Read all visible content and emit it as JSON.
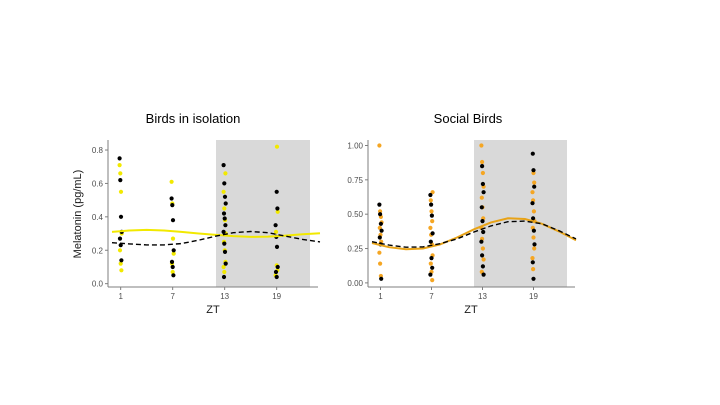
{
  "figure": {
    "ylabel": "Melatonin (pg/mL)"
  },
  "chart_data": [
    {
      "type": "scatter",
      "title": "Birds in isolation",
      "xlabel": "ZT",
      "ylabel": "Melatonin (pg/mL)",
      "x_ticks": [
        1,
        7,
        13,
        19
      ],
      "y_ticks": [
        "0.0",
        "0.2",
        "0.4",
        "0.6",
        "0.8"
      ],
      "xlim": [
        0,
        24
      ],
      "ylim": [
        -0.02,
        0.86
      ],
      "shaded_interval": [
        12,
        24
      ],
      "grid": false,
      "series": [
        {
          "color": "#f2e900",
          "type": "points",
          "x": [
            1,
            1,
            1,
            1,
            1,
            1,
            1,
            7,
            7,
            7,
            7,
            7,
            7,
            13,
            13,
            13,
            13,
            13,
            13,
            13,
            13,
            13,
            13,
            19,
            19,
            19,
            19,
            19,
            19
          ],
          "y": [
            0.71,
            0.66,
            0.55,
            0.3,
            0.2,
            0.12,
            0.08,
            0.61,
            0.48,
            0.27,
            0.18,
            0.12,
            0.07,
            0.66,
            0.55,
            0.45,
            0.38,
            0.3,
            0.25,
            0.2,
            0.13,
            0.1,
            0.07,
            0.82,
            0.43,
            0.31,
            0.11,
            0.08,
            0.05
          ]
        },
        {
          "color": "#000000",
          "type": "points",
          "x": [
            1,
            1,
            1,
            1,
            1,
            1,
            1,
            7,
            7,
            7,
            7,
            7,
            7,
            7,
            13,
            13,
            13,
            13,
            13,
            13,
            13,
            13,
            13,
            13,
            13,
            13,
            19,
            19,
            19,
            19,
            19,
            19,
            19,
            19
          ],
          "y": [
            0.75,
            0.62,
            0.4,
            0.31,
            0.27,
            0.23,
            0.14,
            0.51,
            0.47,
            0.38,
            0.2,
            0.13,
            0.1,
            0.05,
            0.71,
            0.6,
            0.52,
            0.48,
            0.42,
            0.39,
            0.35,
            0.31,
            0.24,
            0.19,
            0.12,
            0.04,
            0.55,
            0.45,
            0.35,
            0.28,
            0.22,
            0.1,
            0.07,
            0.04
          ]
        },
        {
          "color": "#f2e900",
          "type": "fit-solid",
          "x": [
            0,
            2,
            4,
            6,
            8,
            10,
            12,
            14,
            16,
            18,
            20,
            22,
            24
          ],
          "y": [
            0.31,
            0.318,
            0.322,
            0.318,
            0.31,
            0.3,
            0.292,
            0.285,
            0.28,
            0.282,
            0.288,
            0.296,
            0.302
          ]
        },
        {
          "color": "#000000",
          "type": "fit-dashed",
          "x": [
            0,
            2,
            4,
            6,
            8,
            10,
            12,
            14,
            16,
            18,
            20,
            22,
            24
          ],
          "y": [
            0.245,
            0.238,
            0.232,
            0.232,
            0.24,
            0.26,
            0.285,
            0.305,
            0.312,
            0.305,
            0.285,
            0.265,
            0.25
          ]
        }
      ]
    },
    {
      "type": "scatter",
      "title": "Social Birds",
      "xlabel": "ZT",
      "ylabel": "",
      "x_ticks": [
        1,
        7,
        13,
        19
      ],
      "y_ticks": [
        "0.00",
        "0.25",
        "0.50",
        "0.75",
        "1.00"
      ],
      "xlim": [
        0,
        24
      ],
      "ylim": [
        -0.03,
        1.04
      ],
      "shaded_interval": [
        12,
        24
      ],
      "grid": false,
      "series": [
        {
          "color": "#f5a623",
          "type": "points",
          "x": [
            1,
            1,
            1,
            1,
            1,
            1,
            1,
            1,
            1,
            1,
            7,
            7,
            7,
            7,
            7,
            7,
            7,
            7,
            7,
            7,
            7,
            13,
            13,
            13,
            13,
            13,
            13,
            13,
            13,
            13,
            13,
            13,
            13,
            19,
            19,
            19,
            19,
            19,
            19,
            19,
            19,
            19,
            19,
            19
          ],
          "y": [
            1.0,
            0.52,
            0.48,
            0.44,
            0.4,
            0.35,
            0.3,
            0.22,
            0.14,
            0.05,
            0.66,
            0.6,
            0.52,
            0.45,
            0.4,
            0.35,
            0.28,
            0.2,
            0.14,
            0.08,
            0.02,
            1.0,
            0.88,
            0.8,
            0.7,
            0.62,
            0.55,
            0.47,
            0.4,
            0.32,
            0.25,
            0.17,
            0.08,
            0.8,
            0.73,
            0.66,
            0.6,
            0.52,
            0.45,
            0.4,
            0.33,
            0.25,
            0.18,
            0.1
          ]
        },
        {
          "color": "#000000",
          "type": "points",
          "x": [
            1,
            1,
            1,
            1,
            1,
            1,
            1,
            7,
            7,
            7,
            7,
            7,
            7,
            7,
            7,
            13,
            13,
            13,
            13,
            13,
            13,
            13,
            13,
            13,
            13,
            19,
            19,
            19,
            19,
            19,
            19,
            19,
            19,
            19
          ],
          "y": [
            0.57,
            0.5,
            0.43,
            0.38,
            0.33,
            0.28,
            0.03,
            0.64,
            0.57,
            0.49,
            0.36,
            0.3,
            0.18,
            0.11,
            0.06,
            0.85,
            0.72,
            0.66,
            0.55,
            0.45,
            0.37,
            0.3,
            0.2,
            0.12,
            0.06,
            0.94,
            0.82,
            0.7,
            0.58,
            0.47,
            0.38,
            0.28,
            0.15,
            0.03
          ]
        },
        {
          "color": "#e8a317",
          "type": "fit-solid",
          "x": [
            0,
            2,
            4,
            6,
            8,
            10,
            12,
            14,
            16,
            18,
            20,
            22,
            24
          ],
          "y": [
            0.29,
            0.26,
            0.245,
            0.25,
            0.28,
            0.33,
            0.39,
            0.44,
            0.47,
            0.465,
            0.43,
            0.375,
            0.31
          ]
        },
        {
          "color": "#000000",
          "type": "fit-dashed",
          "x": [
            0,
            2,
            4,
            6,
            8,
            10,
            12,
            14,
            16,
            18,
            20,
            22,
            24
          ],
          "y": [
            0.3,
            0.275,
            0.26,
            0.262,
            0.285,
            0.32,
            0.37,
            0.415,
            0.445,
            0.45,
            0.43,
            0.38,
            0.32
          ]
        }
      ]
    }
  ]
}
